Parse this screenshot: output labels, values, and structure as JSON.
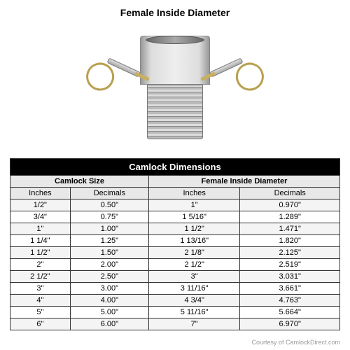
{
  "labelTop": "Female Inside Diameter",
  "table": {
    "title": "Camlock Dimensions",
    "group1": "Camlock Size",
    "group2": "Female Inside Diameter",
    "col1": "Inches",
    "col2": "Decimals",
    "col3": "Inches",
    "col4": "Decimals",
    "rows": [
      {
        "c1": "1/2\"",
        "c2": "0.50\"",
        "c3": "1\"",
        "c4": "0.970\""
      },
      {
        "c1": "3/4\"",
        "c2": "0.75\"",
        "c3": "1 5/16\"",
        "c4": "1.289\""
      },
      {
        "c1": "1\"",
        "c2": "1.00\"",
        "c3": "1 1/2\"",
        "c4": "1.471\""
      },
      {
        "c1": "1 1/4\"",
        "c2": "1.25\"",
        "c3": "1 13/16\"",
        "c4": "1.820\""
      },
      {
        "c1": "1 1/2\"",
        "c2": "1.50\"",
        "c3": "2 1/8\"",
        "c4": "2.125\""
      },
      {
        "c1": "2\"",
        "c2": "2.00\"",
        "c3": "2 1/2\"",
        "c4": "2.519\""
      },
      {
        "c1": "2 1/2\"",
        "c2": "2.50\"",
        "c3": "3\"",
        "c4": "3.031\""
      },
      {
        "c1": "3\"",
        "c2": "3.00\"",
        "c3": "3 11/16\"",
        "c4": "3.661\""
      },
      {
        "c1": "4\"",
        "c2": "4.00\"",
        "c3": "4 3/4\"",
        "c4": "4.763\""
      },
      {
        "c1": "5\"",
        "c2": "5.00\"",
        "c3": "5 11/16\"",
        "c4": "5.664\""
      },
      {
        "c1": "6\"",
        "c2": "6.00\"",
        "c3": "7\"",
        "c4": "6.970\""
      }
    ]
  },
  "credit": "Courtesy of CamlockDirect.com"
}
